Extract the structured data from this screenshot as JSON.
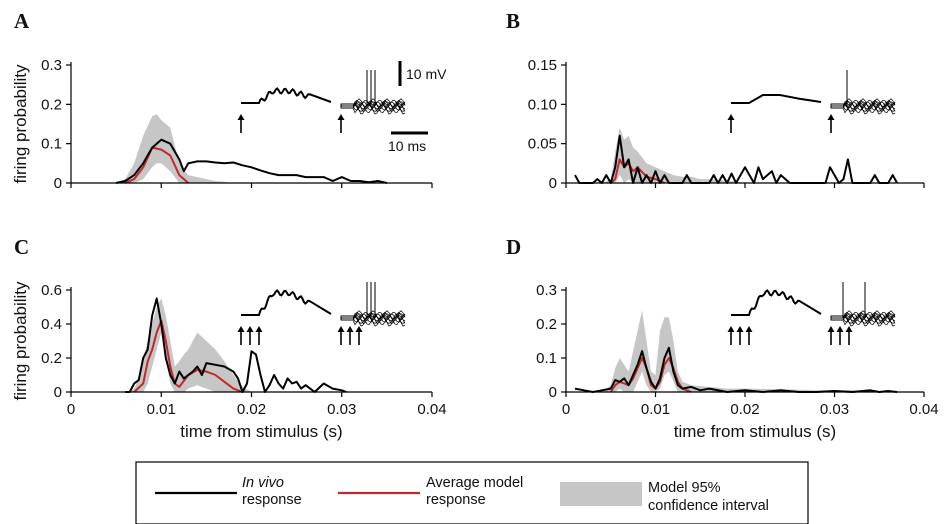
{
  "figure": {
    "legend": {
      "invivo_line1": "In vivo",
      "invivo_line2": "response",
      "model_line1": "Average model",
      "model_line2": "response",
      "ci_line1": "Model 95%",
      "ci_line2": "confidence interval"
    },
    "colors": {
      "invivo": "#000000",
      "model": "#c0282d",
      "ci": "#c6c6c6"
    },
    "scalebars": {
      "voltage": "10 mV",
      "time": "10 ms"
    }
  },
  "chart_data": [
    {
      "type": "line",
      "panel": "A",
      "ylabel": "firing probability",
      "xlabel": "",
      "xlim": [
        0,
        0.04
      ],
      "ylim": [
        0,
        0.3
      ],
      "xticks": [],
      "yticks": [
        "0",
        "0.1",
        "0.2",
        "0.3"
      ],
      "ytick_values": [
        0,
        0.1,
        0.2,
        0.3
      ],
      "stimulus_arrows": 1,
      "series": [
        {
          "role": "invivo",
          "x": [
            0.005,
            0.006,
            0.007,
            0.008,
            0.009,
            0.01,
            0.011,
            0.012,
            0.0125,
            0.013,
            0.014,
            0.015,
            0.016,
            0.017,
            0.018,
            0.019,
            0.02,
            0.021,
            0.022,
            0.023,
            0.024,
            0.025,
            0.026,
            0.027,
            0.028,
            0.029,
            0.03,
            0.031,
            0.032,
            0.033,
            0.034,
            0.035
          ],
          "y": [
            0,
            0.005,
            0.02,
            0.05,
            0.09,
            0.11,
            0.1,
            0.06,
            0.03,
            0.05,
            0.055,
            0.055,
            0.052,
            0.05,
            0.052,
            0.045,
            0.04,
            0.032,
            0.025,
            0.02,
            0.02,
            0.02,
            0.015,
            0.015,
            0.015,
            0.005,
            0.015,
            0.005,
            0.005,
            0.002,
            0.005,
            0
          ]
        },
        {
          "role": "model",
          "x": [
            0.006,
            0.007,
            0.008,
            0.009,
            0.01,
            0.011,
            0.012,
            0.013
          ],
          "y": [
            0,
            0.01,
            0.04,
            0.09,
            0.085,
            0.07,
            0.02,
            0
          ]
        },
        {
          "role": "ci",
          "x": [
            0.005,
            0.006,
            0.007,
            0.008,
            0.009,
            0.0095,
            0.01,
            0.011,
            0.012,
            0.013,
            0.014,
            0.015,
            0.016,
            0.017,
            0.018
          ],
          "upper": [
            0,
            0.01,
            0.05,
            0.12,
            0.17,
            0.175,
            0.16,
            0.14,
            0.05,
            0.02,
            0.015,
            0.01,
            0.005,
            0.003,
            0
          ],
          "lower": [
            0,
            0,
            0,
            0.01,
            0.04,
            0.05,
            0.05,
            0.03,
            0,
            0,
            0,
            0,
            0,
            0,
            0
          ]
        }
      ]
    },
    {
      "type": "line",
      "panel": "B",
      "ylabel": "",
      "xlabel": "",
      "xlim": [
        0,
        0.04
      ],
      "ylim": [
        0,
        0.15
      ],
      "xticks": [],
      "yticks": [
        "0",
        "0.05",
        "0.10",
        "0.15"
      ],
      "ytick_values": [
        0,
        0.05,
        0.1,
        0.15
      ],
      "stimulus_arrows": 1,
      "series": [
        {
          "role": "invivo",
          "x": [
            0.001,
            0.0015,
            0.003,
            0.0035,
            0.004,
            0.0045,
            0.005,
            0.0055,
            0.006,
            0.0065,
            0.007,
            0.0075,
            0.008,
            0.0085,
            0.009,
            0.0095,
            0.01,
            0.0105,
            0.011,
            0.0115,
            0.012,
            0.013,
            0.0135,
            0.014,
            0.015,
            0.016,
            0.0165,
            0.017,
            0.0175,
            0.018,
            0.0185,
            0.019,
            0.0195,
            0.02,
            0.0205,
            0.021,
            0.0215,
            0.022,
            0.0225,
            0.023,
            0.0235,
            0.024,
            0.025,
            0.029,
            0.0295,
            0.03,
            0.0305,
            0.031,
            0.0315,
            0.032,
            0.0325,
            0.034,
            0.0345,
            0.035,
            0.036,
            0.0365,
            0.037
          ],
          "y": [
            0.01,
            0,
            0,
            0.005,
            0,
            0.01,
            0,
            0.02,
            0.06,
            0.02,
            0.03,
            0,
            0.02,
            0,
            0.01,
            0,
            0.015,
            0,
            0.01,
            0,
            0,
            0,
            0.01,
            0,
            0,
            0,
            0.01,
            0,
            0.01,
            0,
            0.012,
            0,
            0.01,
            0.02,
            0.01,
            0,
            0.02,
            0.005,
            0.01,
            0.015,
            0,
            0.01,
            0,
            0,
            0.02,
            0.01,
            0,
            0.005,
            0.03,
            0,
            0,
            0,
            0.01,
            0,
            0,
            0.01,
            0
          ]
        },
        {
          "role": "model",
          "x": [
            0.005,
            0.0055,
            0.006,
            0.0065,
            0.007,
            0.0075,
            0.008,
            0.009,
            0.01,
            0.011
          ],
          "y": [
            0,
            0.005,
            0.03,
            0.02,
            0.025,
            0.015,
            0.02,
            0.008,
            0.005,
            0
          ]
        },
        {
          "role": "ci",
          "x": [
            0.004,
            0.005,
            0.0055,
            0.006,
            0.0065,
            0.007,
            0.0075,
            0.008,
            0.009,
            0.01,
            0.011,
            0.012,
            0.013,
            0.014,
            0.015,
            0.016,
            0.018,
            0.02
          ],
          "upper": [
            0,
            0.005,
            0.04,
            0.07,
            0.055,
            0.06,
            0.045,
            0.04,
            0.025,
            0.02,
            0.015,
            0.01,
            0.008,
            0.008,
            0.005,
            0.005,
            0.003,
            0
          ],
          "lower": [
            0,
            0,
            0,
            0.01,
            0,
            0.005,
            0,
            0,
            0,
            0,
            0,
            0,
            0,
            0,
            0,
            0,
            0,
            0
          ]
        }
      ]
    },
    {
      "type": "line",
      "panel": "C",
      "ylabel": "firing probability",
      "xlabel": "time from stimulus (s)",
      "xlim": [
        0,
        0.04
      ],
      "ylim": [
        0,
        0.6
      ],
      "xticks": [
        "0",
        "0.01",
        "0.02",
        "0.03",
        "0.04"
      ],
      "xtick_values": [
        0,
        0.01,
        0.02,
        0.03,
        0.04
      ],
      "yticks": [
        "0",
        "0.2",
        "0.4",
        "0.6"
      ],
      "ytick_values": [
        0,
        0.2,
        0.4,
        0.6
      ],
      "stimulus_arrows": 3,
      "series": [
        {
          "role": "invivo",
          "x": [
            0.006,
            0.0065,
            0.007,
            0.0075,
            0.008,
            0.0085,
            0.009,
            0.0095,
            0.01,
            0.0105,
            0.011,
            0.0115,
            0.012,
            0.0125,
            0.013,
            0.0135,
            0.014,
            0.0145,
            0.015,
            0.016,
            0.017,
            0.018,
            0.0185,
            0.019,
            0.0195,
            0.02,
            0.0205,
            0.021,
            0.0215,
            0.022,
            0.0225,
            0.023,
            0.0235,
            0.024,
            0.0245,
            0.025,
            0.0255,
            0.026,
            0.027,
            0.028,
            0.029,
            0.03,
            0.0305
          ],
          "y": [
            0,
            0,
            0.05,
            0.07,
            0.2,
            0.25,
            0.45,
            0.55,
            0.4,
            0.2,
            0.1,
            0.05,
            0.12,
            0.08,
            0.1,
            0.12,
            0.15,
            0.1,
            0.17,
            0.16,
            0.15,
            0.12,
            0.08,
            0,
            0.05,
            0.24,
            0.22,
            0.1,
            0,
            0.04,
            0.1,
            0.05,
            0.02,
            0.08,
            0.05,
            0.06,
            0.02,
            0.04,
            0,
            0.05,
            0.02,
            0.01,
            0
          ]
        },
        {
          "role": "model",
          "x": [
            0.007,
            0.008,
            0.0085,
            0.009,
            0.0095,
            0.01,
            0.0105,
            0.011,
            0.0115,
            0.012,
            0.013,
            0.014,
            0.015,
            0.016,
            0.017,
            0.018,
            0.019
          ],
          "y": [
            0,
            0.05,
            0.18,
            0.25,
            0.35,
            0.42,
            0.3,
            0.15,
            0.05,
            0.03,
            0.1,
            0.13,
            0.12,
            0.1,
            0.06,
            0.02,
            0
          ]
        },
        {
          "role": "ci",
          "x": [
            0.0065,
            0.007,
            0.0075,
            0.008,
            0.0085,
            0.009,
            0.0095,
            0.01,
            0.0105,
            0.011,
            0.0115,
            0.012,
            0.0125,
            0.013,
            0.0135,
            0.014,
            0.015,
            0.016,
            0.017,
            0.018,
            0.019,
            0.02
          ],
          "upper": [
            0,
            0.02,
            0.08,
            0.2,
            0.3,
            0.4,
            0.5,
            0.55,
            0.45,
            0.3,
            0.15,
            0.18,
            0.22,
            0.25,
            0.3,
            0.35,
            0.3,
            0.25,
            0.18,
            0.1,
            0.03,
            0
          ],
          "lower": [
            0,
            0,
            0,
            0,
            0.05,
            0.15,
            0.25,
            0.35,
            0.2,
            0.05,
            0,
            0,
            0,
            0.02,
            0.03,
            0.04,
            0.02,
            0,
            0,
            0,
            0,
            0
          ]
        }
      ]
    },
    {
      "type": "line",
      "panel": "D",
      "ylabel": "",
      "xlabel": "time from stimulus (s)",
      "xlim": [
        0,
        0.04
      ],
      "ylim": [
        0,
        0.3
      ],
      "xticks": [
        "0",
        "0.01",
        "0.02",
        "0.03",
        "0.04"
      ],
      "xtick_values": [
        0,
        0.01,
        0.02,
        0.03,
        0.04
      ],
      "yticks": [
        "0",
        "0.1",
        "0.2",
        "0.3"
      ],
      "ytick_values": [
        0,
        0.1,
        0.2,
        0.3
      ],
      "stimulus_arrows": 3,
      "series": [
        {
          "role": "invivo",
          "x": [
            0.001,
            0.002,
            0.003,
            0.004,
            0.005,
            0.0055,
            0.006,
            0.0065,
            0.007,
            0.0075,
            0.008,
            0.0085,
            0.009,
            0.0095,
            0.01,
            0.0105,
            0.011,
            0.0115,
            0.012,
            0.0125,
            0.013,
            0.014,
            0.015,
            0.016,
            0.018,
            0.02,
            0.022,
            0.024,
            0.026,
            0.028,
            0.03,
            0.032,
            0.034,
            0.035,
            0.036,
            0.037
          ],
          "y": [
            0.01,
            0.005,
            0,
            0.005,
            0.01,
            0.035,
            0.03,
            0.04,
            0.02,
            0.05,
            0.08,
            0.12,
            0.07,
            0.03,
            0.01,
            0.04,
            0.1,
            0.13,
            0.06,
            0.02,
            0.01,
            0.015,
            0.005,
            0.01,
            0,
            0.005,
            0,
            0.005,
            0,
            0,
            0.003,
            0,
            0.005,
            0,
            0.003,
            0
          ]
        },
        {
          "role": "model",
          "x": [
            0.005,
            0.0055,
            0.006,
            0.0065,
            0.007,
            0.0075,
            0.008,
            0.0085,
            0.009,
            0.0095,
            0.01,
            0.0105,
            0.011,
            0.0115,
            0.012,
            0.0125,
            0.013,
            0.014
          ],
          "y": [
            0,
            0.02,
            0.03,
            0.025,
            0.02,
            0.04,
            0.07,
            0.1,
            0.07,
            0.02,
            0.01,
            0.03,
            0.08,
            0.1,
            0.07,
            0.03,
            0.01,
            0
          ]
        },
        {
          "role": "ci",
          "x": [
            0.004,
            0.005,
            0.0055,
            0.006,
            0.0065,
            0.007,
            0.0075,
            0.008,
            0.0085,
            0.009,
            0.0095,
            0.01,
            0.0105,
            0.011,
            0.0115,
            0.012,
            0.0125,
            0.013,
            0.014,
            0.016,
            0.018,
            0.02,
            0.024,
            0.028,
            0.032,
            0.036
          ],
          "upper": [
            0,
            0.02,
            0.07,
            0.1,
            0.08,
            0.06,
            0.12,
            0.18,
            0.24,
            0.15,
            0.06,
            0.05,
            0.18,
            0.22,
            0.22,
            0.15,
            0.06,
            0.03,
            0.02,
            0.015,
            0.01,
            0.01,
            0.008,
            0.005,
            0.005,
            0
          ],
          "lower": [
            0,
            0,
            0,
            0.01,
            0,
            0,
            0,
            0.03,
            0.06,
            0.02,
            0,
            0,
            0.01,
            0.05,
            0.06,
            0.03,
            0,
            0,
            0,
            0,
            0,
            0,
            0,
            0,
            0,
            0
          ]
        }
      ]
    }
  ]
}
